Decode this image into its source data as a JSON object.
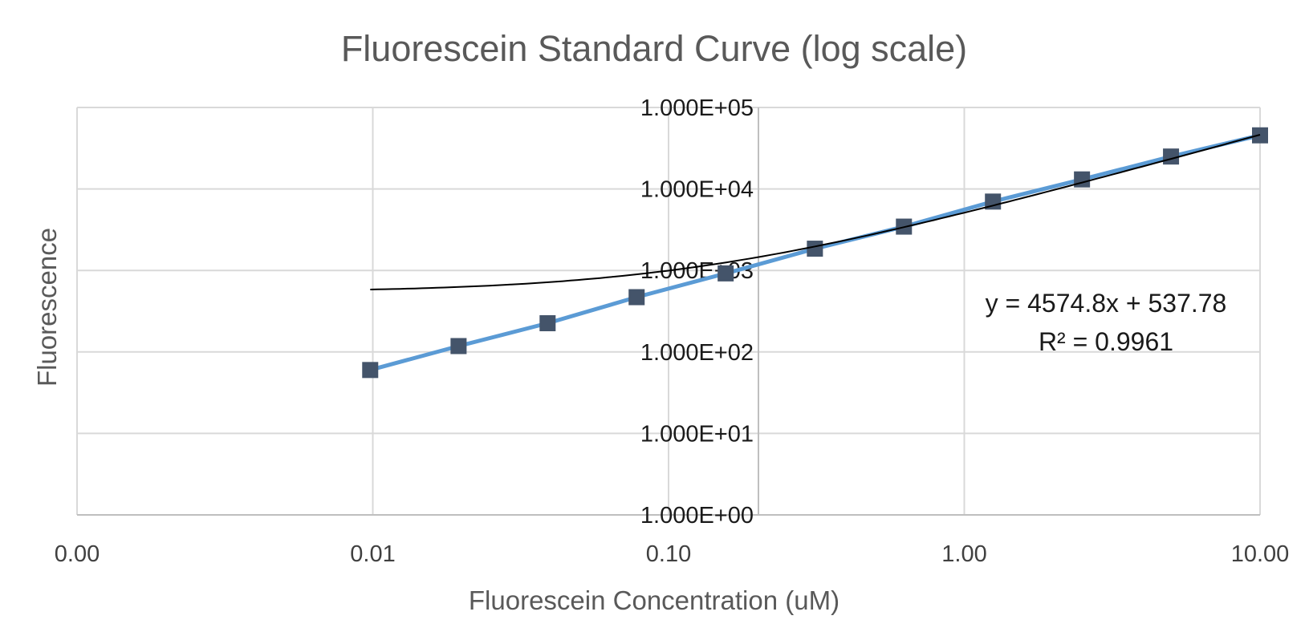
{
  "chart_data": {
    "type": "scatter",
    "title": "Fluorescein Standard Curve (log scale)",
    "xlabel": "Fluorescein Concentration (uM)",
    "ylabel": "Fluorescence",
    "x_scale": "log",
    "y_scale": "log",
    "xlim": [
      0.001,
      10
    ],
    "ylim": [
      1,
      100000
    ],
    "x_tick_labels": [
      "0.00",
      "0.01",
      "0.10",
      "1.00",
      "10.00"
    ],
    "y_tick_labels": [
      "1.000E+00",
      "1.000E+01",
      "1.000E+02",
      "1.000E+03",
      "1.000E+04",
      "1.000E+05"
    ],
    "grid": true,
    "series": [
      {
        "x": [
          0.0098,
          0.0195,
          0.039,
          0.078,
          0.156,
          0.3125,
          0.625,
          1.25,
          2.5,
          5,
          10
        ],
        "y": [
          60,
          118,
          225,
          470,
          920,
          1850,
          3450,
          7000,
          13100,
          25000,
          45500
        ],
        "color": "#5b9bd5",
        "marker_color": "#44546a"
      }
    ],
    "trendline": {
      "type": "linear",
      "slope": 4574.8,
      "intercept": 537.78,
      "x_range": [
        0.0098,
        10
      ],
      "color": "#000000",
      "equation": "y = 4574.8x + 537.78",
      "r_squared": "R² = 0.9961"
    }
  }
}
